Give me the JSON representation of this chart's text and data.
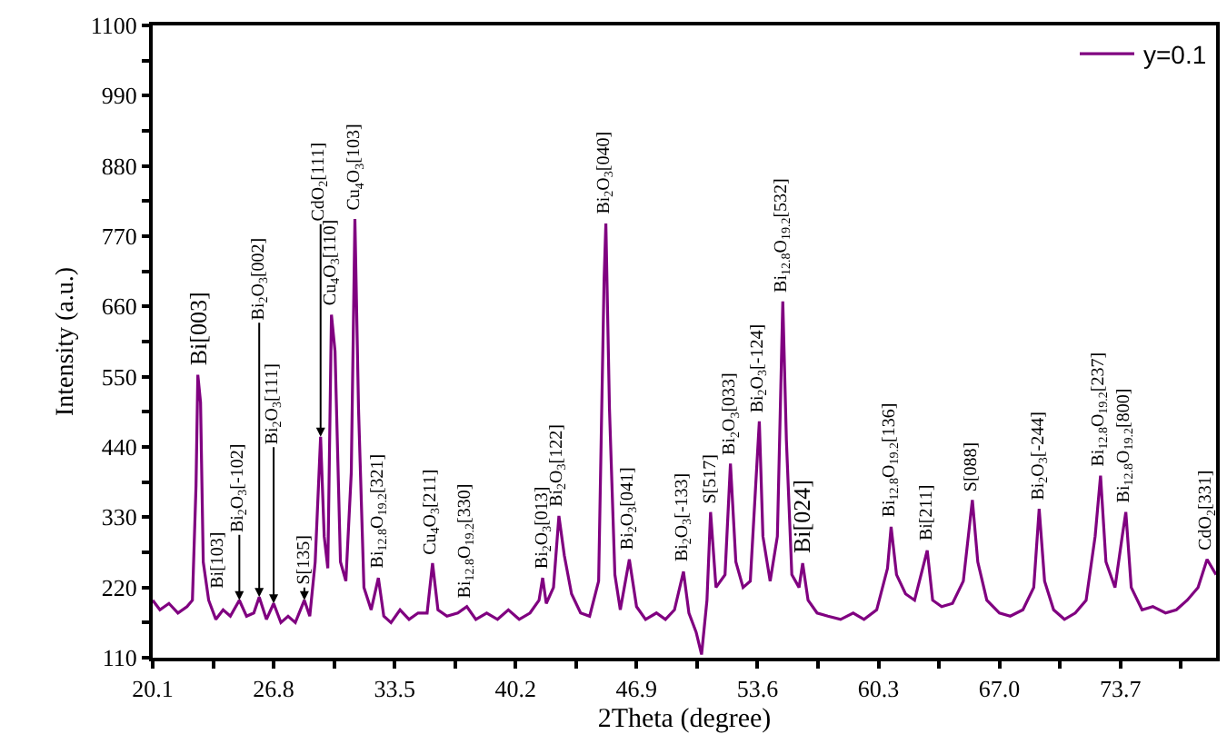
{
  "chart_data": {
    "type": "line",
    "xlabel": "2Theta (degree)",
    "ylabel": "Intensity (a.u.)",
    "legend": "top right",
    "marker": "none",
    "line_style": "solid",
    "xlim": [
      20.1,
      79.0
    ],
    "ylim": [
      110,
      1100
    ],
    "xticks": [
      20.1,
      {
        "value": 23.45,
        "label": null
      },
      26.8,
      {
        "value": 30.15,
        "label": null
      },
      33.5,
      {
        "value": 36.85,
        "label": null
      },
      40.2,
      {
        "value": 43.55,
        "label": null
      },
      46.9,
      {
        "value": 50.25,
        "label": null
      },
      53.6,
      {
        "value": 56.95,
        "label": null
      },
      60.3,
      {
        "value": 63.65,
        "label": null
      },
      {
        "value": 67.0,
        "label": "67.0"
      },
      {
        "value": 70.35,
        "label": null
      },
      73.7,
      {
        "value": 77.05,
        "label": null
      }
    ],
    "yticks": [
      110,
      {
        "value": 165,
        "label": null
      },
      220,
      {
        "value": 275,
        "label": null
      },
      330,
      {
        "value": 385,
        "label": null
      },
      440,
      {
        "value": 495,
        "label": null
      },
      550,
      {
        "value": 605,
        "label": null
      },
      660,
      {
        "value": 715,
        "label": null
      },
      770,
      {
        "value": 825,
        "label": null
      },
      880,
      {
        "value": 935,
        "label": null
      },
      990,
      {
        "value": 1045,
        "label": null
      },
      1100
    ],
    "series": [
      {
        "name": "y=0.1",
        "color": "#800080",
        "x": [
          20.1,
          20.5,
          21,
          21.5,
          22,
          22.3,
          22.5,
          22.6,
          22.75,
          22.9,
          23.2,
          23.6,
          24,
          24.4,
          24.9,
          25.3,
          25.7,
          26.0,
          26.4,
          26.8,
          27.2,
          27.6,
          28.0,
          28.5,
          28.8,
          29.1,
          29.4,
          29.6,
          29.8,
          30.0,
          30.2,
          30.5,
          30.8,
          31.1,
          31.3,
          31.5,
          31.8,
          32.2,
          32.6,
          32.9,
          33.3,
          33.8,
          34.3,
          34.8,
          35.3,
          35.6,
          35.9,
          36.4,
          37.0,
          37.5,
          38.0,
          38.6,
          39.2,
          39.8,
          40.4,
          41.0,
          41.5,
          41.7,
          41.9,
          42.3,
          42.6,
          42.9,
          43.3,
          43.8,
          44.3,
          44.8,
          45.1,
          45.2,
          45.4,
          45.7,
          46.0,
          46.5,
          46.9,
          47.4,
          48.0,
          48.5,
          49.0,
          49.5,
          49.8,
          50.2,
          50.5,
          50.8,
          51.0,
          51.3,
          51.8,
          52.1,
          52.4,
          52.8,
          53.2,
          53.5,
          53.7,
          53.9,
          54.3,
          54.7,
          55.0,
          55.2,
          55.5,
          55.9,
          56.1,
          56.4,
          56.9,
          57.5,
          58.2,
          58.9,
          59.5,
          60.2,
          60.8,
          61.0,
          61.3,
          61.8,
          62.3,
          63.0,
          63.3,
          63.8,
          64.4,
          65.0,
          65.5,
          65.8,
          66.3,
          67.0,
          67.6,
          68.3,
          68.9,
          69.2,
          69.5,
          70.0,
          70.6,
          71.2,
          71.8,
          72.3,
          72.6,
          72.9,
          73.4,
          73.8,
          74.0,
          74.3,
          74.9,
          75.5,
          76.2,
          76.8,
          77.4,
          78.0,
          78.5,
          79.0
        ],
        "values": [
          200,
          185,
          195,
          180,
          190,
          200,
          380,
          553,
          510,
          260,
          200,
          170,
          185,
          175,
          200,
          175,
          180,
          205,
          170,
          195,
          165,
          175,
          165,
          200,
          175,
          260,
          456,
          300,
          250,
          647,
          590,
          260,
          230,
          400,
          797,
          500,
          220,
          185,
          235,
          175,
          165,
          185,
          170,
          180,
          180,
          258,
          185,
          175,
          180,
          190,
          170,
          180,
          170,
          185,
          170,
          180,
          200,
          235,
          195,
          220,
          332,
          270,
          210,
          180,
          175,
          230,
          700,
          790,
          500,
          240,
          185,
          264,
          190,
          170,
          180,
          170,
          185,
          245,
          180,
          150,
          115,
          200,
          338,
          220,
          240,
          414,
          260,
          220,
          230,
          380,
          480,
          300,
          230,
          300,
          668,
          450,
          240,
          220,
          258,
          200,
          180,
          175,
          170,
          180,
          170,
          185,
          250,
          315,
          240,
          210,
          200,
          278,
          200,
          190,
          195,
          230,
          357,
          260,
          200,
          180,
          175,
          185,
          220,
          343,
          230,
          185,
          170,
          180,
          200,
          300,
          395,
          260,
          220,
          300,
          338,
          220,
          185,
          190,
          180,
          185,
          200,
          220,
          264,
          240
        ]
      }
    ],
    "annotations": [
      {
        "text": "Bi[003]",
        "x": 22.6,
        "y": 553
      },
      {
        "text": "Bi[103]",
        "x": 23.7,
        "y": 205
      },
      {
        "text": "Bi$_{2}$O$_{3}$[-102]",
        "x": 24.9,
        "y": 200
      },
      {
        "text": "Bi$_{2}$O$_{3}$[002]",
        "x": 26.0,
        "y": 205
      },
      {
        "text": "Bi$_{2}$O$_{3}$[111]",
        "x": 26.8,
        "y": 195
      },
      {
        "text": "S[135]",
        "x": 28.5,
        "y": 200
      },
      {
        "text": "CdO$_{2}$[111]",
        "x": 29.4,
        "y": 456
      },
      {
        "text": "Cu$_{4}$O$_{3}$[110]",
        "x": 30.0,
        "y": 647
      },
      {
        "text": "Cu$_{4}$O$_{3}$[103]",
        "x": 31.3,
        "y": 797
      },
      {
        "text": "Bi$_{12.8}$O$_{19.2}$[321]",
        "x": 32.6,
        "y": 235
      },
      {
        "text": "Cu$_{4}$O$_{3}$[211]",
        "x": 35.6,
        "y": 258
      },
      {
        "text": "Bi$_{12.8}$O$_{19.2}$[330]",
        "x": 37.5,
        "y": 190
      },
      {
        "text": "Bi$_{2}$O$_{3}$[013]",
        "x": 41.7,
        "y": 235
      },
      {
        "text": "Bi$_{2}$O$_{3}$[122]",
        "x": 42.6,
        "y": 332
      },
      {
        "text": "Bi$_{2}$O$_{3}$[040]",
        "x": 45.2,
        "y": 790
      },
      {
        "text": "Bi$_{2}$O$_{3}$[041]",
        "x": 46.5,
        "y": 264
      },
      {
        "text": "Bi$_{2}$O$_{3}$[-133]",
        "x": 49.5,
        "y": 245
      },
      {
        "text": "S[517]",
        "x": 51.0,
        "y": 338
      },
      {
        "text": "Bi$_{2}$O$_{3}$[033]",
        "x": 52.1,
        "y": 414
      },
      {
        "text": "Bi$_{2}$O$_{3}$[-124]",
        "x": 53.7,
        "y": 480
      },
      {
        "text": "Bi$_{12.8}$O$_{19.2}$[532]",
        "x": 55.0,
        "y": 668
      },
      {
        "text": "Bi[024]",
        "x": 56.1,
        "y": 258
      },
      {
        "text": "Bi$_{12.8}$O$_{19.2}$[136]",
        "x": 61.0,
        "y": 315
      },
      {
        "text": "Bi[211]",
        "x": 63.0,
        "y": 278
      },
      {
        "text": "S[088]",
        "x": 65.5,
        "y": 357
      },
      {
        "text": "Bi$_{2}$O$_{3}$[-244]",
        "x": 69.2,
        "y": 343
      },
      {
        "text": "Bi$_{12.8}$O$_{19.2}$[237]",
        "x": 72.6,
        "y": 395
      },
      {
        "text": "Bi$_{12.8}$O$_{19.2}$[800]",
        "x": 74.0,
        "y": 338
      },
      {
        "text": "CdO$_{2}$[331]",
        "x": 78.5,
        "y": 264
      }
    ]
  }
}
